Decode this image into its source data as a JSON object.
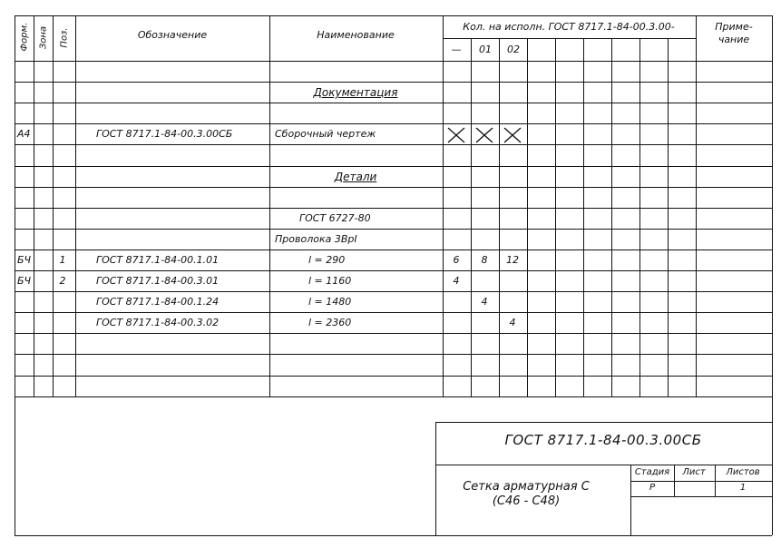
{
  "header": {
    "format": "Форм.",
    "zone": "Зона",
    "position": "Поз.",
    "designation": "Обозначение",
    "name": "Наименование",
    "quantity": "Кол. на исполн. ГОСТ 8717.1-84-00.3.00-",
    "variants": [
      "—",
      "01",
      "02"
    ],
    "note": "Приме-\nчание"
  },
  "rows": [
    {
      "format": "",
      "pos": "",
      "designation": "",
      "name": "",
      "section": false,
      "q": [
        "",
        "",
        ""
      ]
    },
    {
      "format": "",
      "pos": "",
      "designation": "",
      "name": "Документация",
      "section": true,
      "q": [
        "",
        "",
        ""
      ]
    },
    {
      "format": "",
      "pos": "",
      "designation": "",
      "name": "",
      "section": false,
      "q": [
        "",
        "",
        ""
      ]
    },
    {
      "format": "А4",
      "pos": "",
      "designation": "ГОСТ 8717.1-84-00.3.00СБ",
      "name": "Сборочный чертеж",
      "section": false,
      "q": [
        "X",
        "X",
        "X"
      ]
    },
    {
      "format": "",
      "pos": "",
      "designation": "",
      "name": "",
      "section": false,
      "q": [
        "",
        "",
        ""
      ]
    },
    {
      "format": "",
      "pos": "",
      "designation": "",
      "name": "Детали",
      "section": true,
      "q": [
        "",
        "",
        ""
      ]
    },
    {
      "format": "",
      "pos": "",
      "designation": "",
      "name": "",
      "section": false,
      "q": [
        "",
        "",
        ""
      ]
    },
    {
      "format": "",
      "pos": "",
      "designation": "",
      "name": "ГОСТ 6727-80",
      "section": false,
      "q": [
        "",
        "",
        ""
      ]
    },
    {
      "format": "",
      "pos": "",
      "designation": "",
      "name": "Проволока 3ВрI",
      "section": false,
      "q": [
        "",
        "",
        ""
      ]
    },
    {
      "format": "БЧ",
      "pos": "1",
      "designation": "ГОСТ 8717.1-84-00.1.01",
      "name": "l = 290",
      "section": false,
      "q": [
        "6",
        "8",
        "12"
      ]
    },
    {
      "format": "БЧ",
      "pos": "2",
      "designation": "ГОСТ 8717.1-84-00.3.01",
      "name": "l = 1160",
      "section": false,
      "q": [
        "4",
        "",
        ""
      ]
    },
    {
      "format": "",
      "pos": "",
      "designation": "ГОСТ 8717.1-84-00.1.24",
      "name": "l = 1480",
      "section": false,
      "q": [
        "",
        "4",
        ""
      ]
    },
    {
      "format": "",
      "pos": "",
      "designation": "ГОСТ 8717.1-84-00.3.02",
      "name": "l = 2360",
      "section": false,
      "q": [
        "",
        "",
        "4"
      ]
    },
    {
      "format": "",
      "pos": "",
      "designation": "",
      "name": "",
      "section": false,
      "q": [
        "",
        "",
        ""
      ]
    },
    {
      "format": "",
      "pos": "",
      "designation": "",
      "name": "",
      "section": false,
      "q": [
        "",
        "",
        ""
      ]
    },
    {
      "format": "",
      "pos": "",
      "designation": "",
      "name": "",
      "section": false,
      "q": [
        "",
        "",
        ""
      ]
    }
  ],
  "title_block": {
    "document_code": "ГОСТ 8717.1-84-00.3.00СБ",
    "product_name": "Сетка арматурная С",
    "product_range": "(С46 - С48)",
    "stage_label": "Стадия",
    "sheet_label": "Лист",
    "sheets_label": "Листов",
    "stage": "Р",
    "sheet": "",
    "sheets": "1"
  }
}
